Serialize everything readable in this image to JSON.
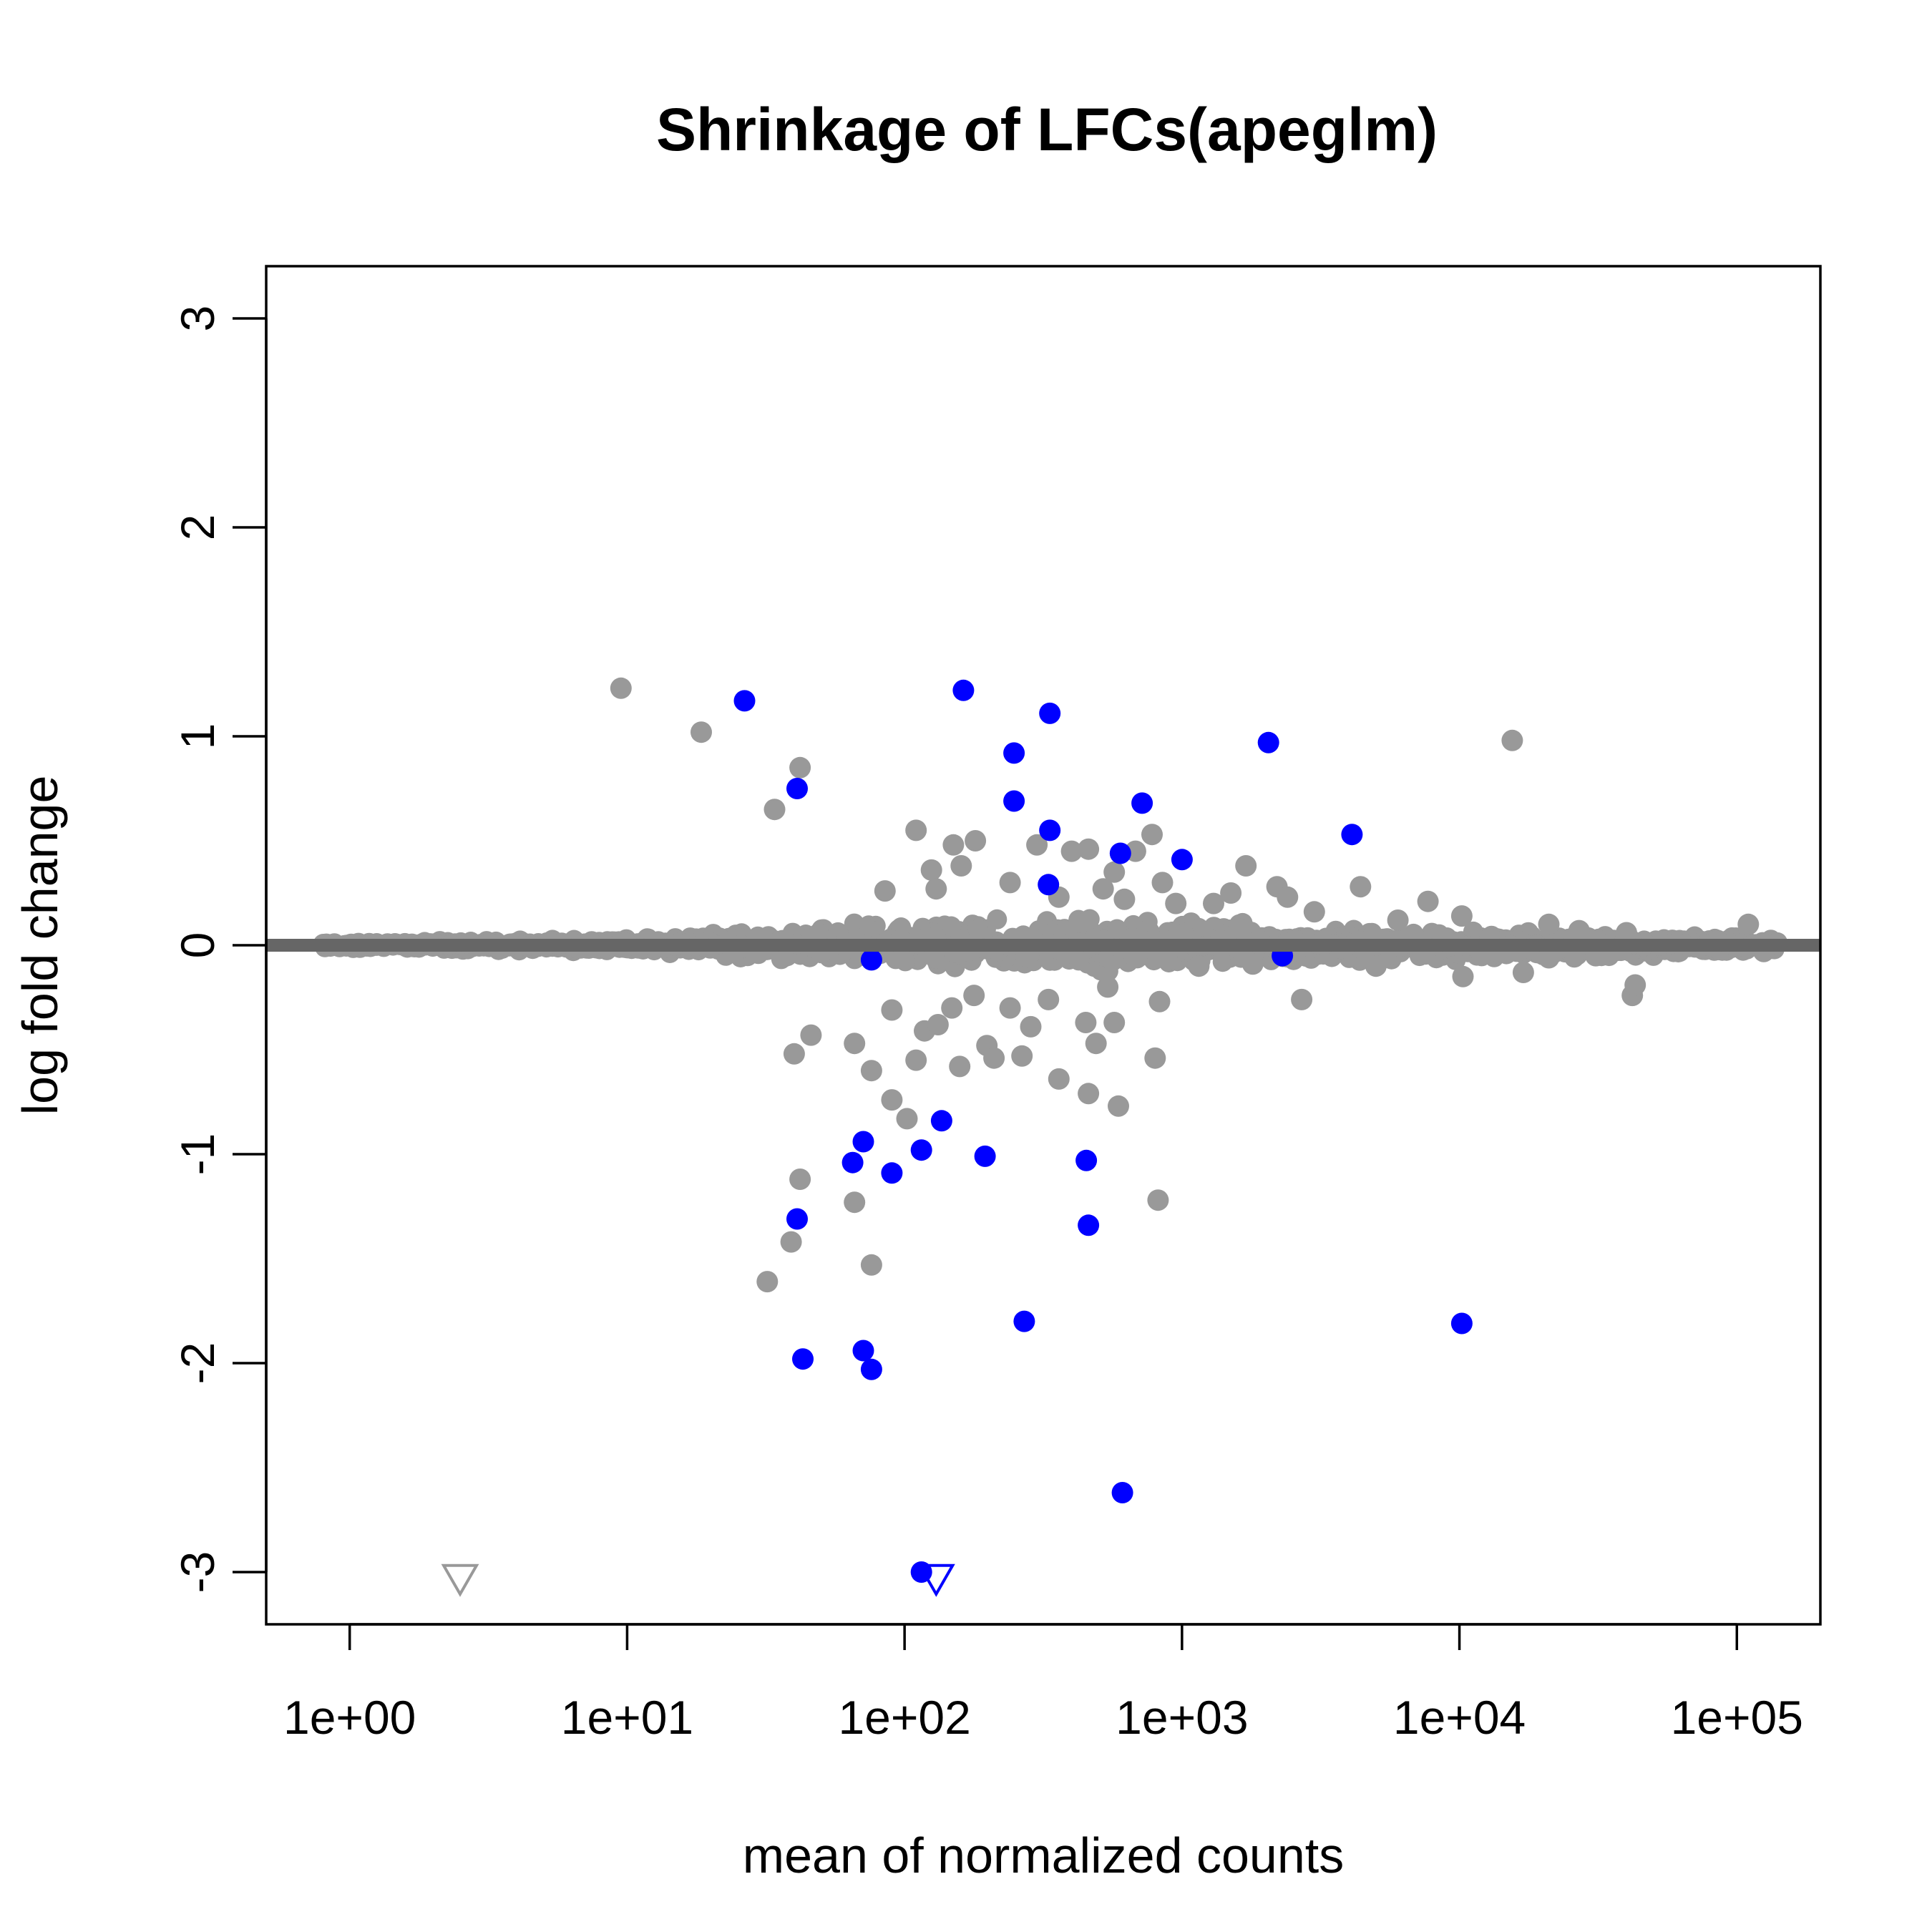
{
  "chart_data": {
    "type": "scatter",
    "title": "Shrinkage of LFCs(apeglm)",
    "xlabel": "mean of normalized counts",
    "ylabel": "log fold change",
    "x_scale": "log10",
    "xlim": [
      0.5,
      200000
    ],
    "ylim": [
      -3.25,
      3.25
    ],
    "x_ticks": [
      1,
      10,
      100,
      1000,
      10000,
      100000
    ],
    "x_tick_labels": [
      "1e+00",
      "1e+01",
      "1e+02",
      "1e+03",
      "1e+04",
      "1e+05"
    ],
    "y_ticks": [
      -3,
      -2,
      -1,
      0,
      1,
      2,
      3
    ],
    "y_tick_labels": [
      "-3",
      "-2",
      "-1",
      "0",
      "1",
      "2",
      "3"
    ],
    "grid": false,
    "legend": "none",
    "reference_line": {
      "y": 0,
      "color": "#666666"
    },
    "colors": {
      "not_significant": "#999999",
      "significant": "#0000ff"
    },
    "series": [
      {
        "role": "not_significant",
        "marker": "circle",
        "points": [
          [
            9.5,
            1.23
          ],
          [
            18.5,
            1.02
          ],
          [
            42,
            0.85
          ],
          [
            34,
            0.65
          ],
          [
            15500,
            0.98
          ],
          [
            110,
            0.55
          ],
          [
            150,
            0.48
          ],
          [
            180,
            0.5
          ],
          [
            160,
            0.38
          ],
          [
            125,
            0.36
          ],
          [
            130,
            0.27
          ],
          [
            85,
            0.26
          ],
          [
            300,
            0.48
          ],
          [
            400,
            0.45
          ],
          [
            460,
            0.46
          ],
          [
            780,
            0.53
          ],
          [
            680,
            0.45
          ],
          [
            850,
            0.3
          ],
          [
            1700,
            0.38
          ],
          [
            2200,
            0.28
          ],
          [
            4400,
            0.28
          ],
          [
            7700,
            0.21
          ],
          [
            10200,
            0.14
          ],
          [
            21000,
            0.1
          ],
          [
            27000,
            0.07
          ],
          [
            110000,
            0.1
          ],
          [
            570,
            0.35
          ],
          [
            520,
            0.27
          ],
          [
            360,
            0.23
          ],
          [
            240,
            0.3
          ],
          [
            2400,
            0.23
          ],
          [
            1300,
            0.2
          ],
          [
            950,
            0.2
          ],
          [
            620,
            0.22
          ],
          [
            1500,
            0.25
          ],
          [
            3000,
            0.16
          ],
          [
            6000,
            0.12
          ],
          [
            40000,
            0.06
          ],
          [
            40,
            -0.52
          ],
          [
            46,
            -0.43
          ],
          [
            66,
            -0.47
          ],
          [
            76,
            -0.6
          ],
          [
            90,
            -0.31
          ],
          [
            110,
            -0.55
          ],
          [
            118,
            -0.41
          ],
          [
            132,
            -0.38
          ],
          [
            148,
            -0.3
          ],
          [
            158,
            -0.58
          ],
          [
            178,
            -0.24
          ],
          [
            198,
            -0.48
          ],
          [
            210,
            -0.54
          ],
          [
            240,
            -0.3
          ],
          [
            265,
            -0.53
          ],
          [
            285,
            -0.39
          ],
          [
            330,
            -0.26
          ],
          [
            360,
            -0.64
          ],
          [
            450,
            -0.37
          ],
          [
            490,
            -0.47
          ],
          [
            540,
            -0.2
          ],
          [
            570,
            -0.37
          ],
          [
            590,
            -0.77
          ],
          [
            460,
            -0.71
          ],
          [
            800,
            -0.54
          ],
          [
            830,
            -0.27
          ],
          [
            820,
            -1.22
          ],
          [
            90,
            -0.74
          ],
          [
            102,
            -0.83
          ],
          [
            42,
            -1.12
          ],
          [
            39,
            -1.42
          ],
          [
            32,
            -1.61
          ],
          [
            66,
            -1.23
          ],
          [
            76,
            -1.53
          ],
          [
            2700,
            -0.26
          ],
          [
            5000,
            -0.1
          ],
          [
            10300,
            -0.15
          ],
          [
            17000,
            -0.13
          ],
          [
            42000,
            -0.24
          ],
          [
            43000,
            -0.19
          ],
          [
            21000,
            -0.06
          ],
          [
            31000,
            -0.05
          ],
          [
            125000,
            -0.03
          ],
          [
            1150,
            -0.1
          ],
          [
            1800,
            -0.09
          ],
          [
            880,
            -0.06
          ]
        ],
        "open_triangles": [
          [
            2.5,
            -3.03
          ]
        ]
      },
      {
        "role": "significant",
        "marker": "circle",
        "points": [
          [
            26.5,
            1.17
          ],
          [
            163,
            1.22
          ],
          [
            334,
            1.11
          ],
          [
            2050,
            0.97
          ],
          [
            248,
            0.92
          ],
          [
            41,
            0.75
          ],
          [
            248,
            0.69
          ],
          [
            718,
            0.68
          ],
          [
            334,
            0.55
          ],
          [
            4100,
            0.53
          ],
          [
            1000,
            0.41
          ],
          [
            600,
            0.44
          ],
          [
            330,
            0.29
          ],
          [
            65,
            -1.04
          ],
          [
            71,
            -0.94
          ],
          [
            115,
            -0.98
          ],
          [
            136,
            -0.84
          ],
          [
            90,
            -1.09
          ],
          [
            195,
            -1.01
          ],
          [
            452,
            -1.03
          ],
          [
            41,
            -1.31
          ],
          [
            460,
            -1.34
          ],
          [
            43,
            -1.98
          ],
          [
            71,
            -1.94
          ],
          [
            76,
            -2.03
          ],
          [
            270,
            -1.8
          ],
          [
            10200,
            -1.81
          ],
          [
            610,
            -2.62
          ],
          [
            115,
            -3.0
          ],
          [
            76,
            -0.07
          ],
          [
            2300,
            -0.05
          ]
        ],
        "open_triangles": [
          [
            130,
            -3.03
          ]
        ]
      }
    ]
  }
}
